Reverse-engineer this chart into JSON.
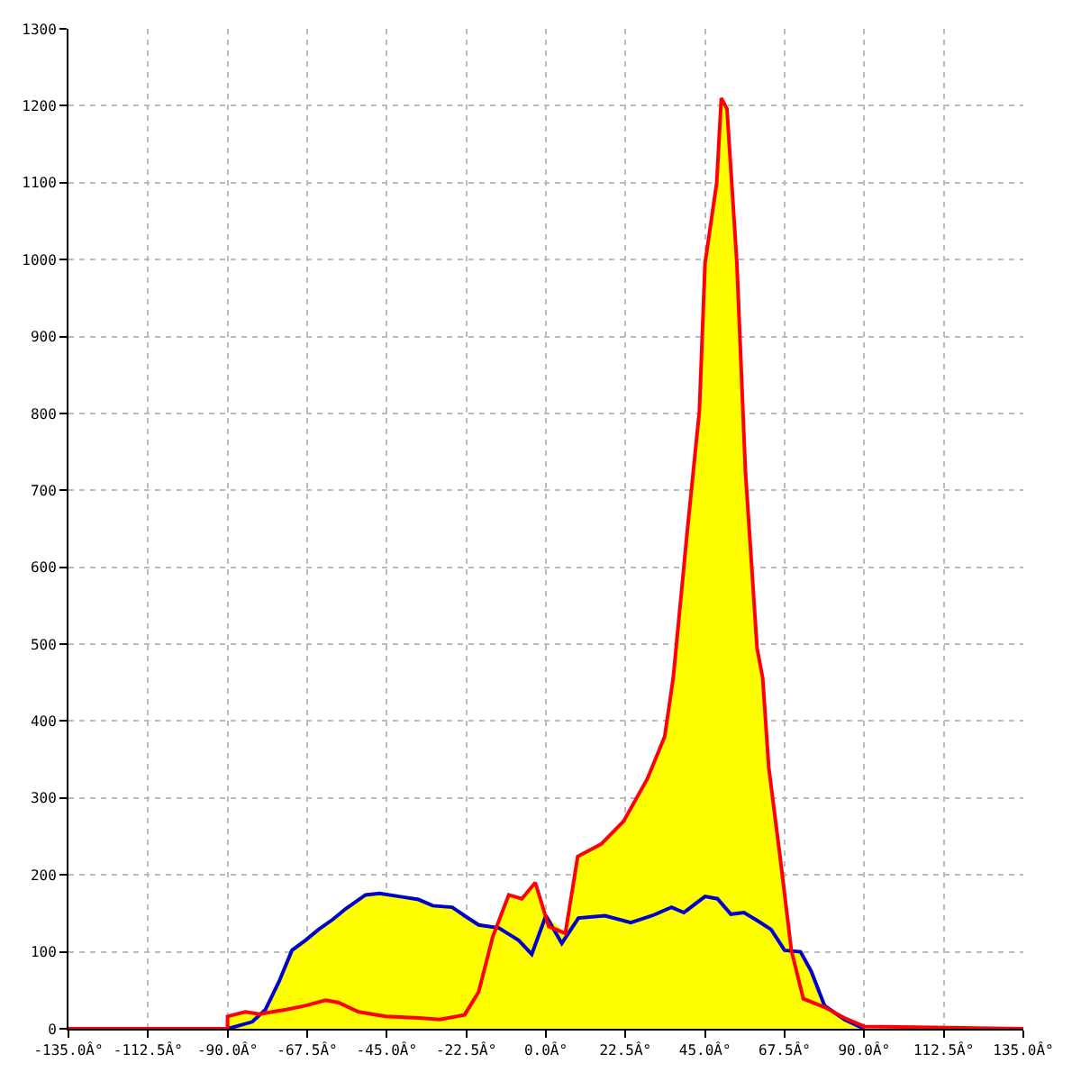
{
  "chart_data": {
    "type": "area",
    "xlim": [
      -135,
      135
    ],
    "xticks": [
      {
        "value": -135,
        "label": "-135.0Â°"
      },
      {
        "value": -112.5,
        "label": "-112.5Â°"
      },
      {
        "value": -90,
        "label": "-90.0Â°"
      },
      {
        "value": -67.5,
        "label": "-67.5Â°"
      },
      {
        "value": -45,
        "label": "-45.0Â°"
      },
      {
        "value": -22.5,
        "label": "-22.5Â°"
      },
      {
        "value": 0,
        "label": "0.0Â°"
      },
      {
        "value": 22.5,
        "label": "22.5Â°"
      },
      {
        "value": 45,
        "label": "45.0Â°"
      },
      {
        "value": 67.5,
        "label": "67.5Â°"
      },
      {
        "value": 90,
        "label": "90.0Â°"
      },
      {
        "value": 112.5,
        "label": "112.5Â°"
      },
      {
        "value": 135,
        "label": "135.0Â°"
      }
    ],
    "ylim": [
      0,
      1300
    ],
    "yticks": [
      0,
      100,
      200,
      300,
      400,
      500,
      600,
      700,
      800,
      900,
      1000,
      1100,
      1200,
      1300
    ],
    "grid": true,
    "series": [
      {
        "color": "#ffff00",
        "x": [
          -90,
          -85,
          -81,
          -79.3,
          -75.5,
          -71.8,
          -68,
          -64.3,
          -60.3,
          -56.6,
          -51,
          -47,
          -41.5,
          -36,
          -32,
          -26.5,
          -23,
          -19,
          -13.3,
          -10.5,
          -6.8,
          -3,
          0,
          5.5,
          9,
          15.6,
          22,
          28.7,
          33.6,
          36,
          40,
          43.4,
          45,
          48.3,
          49.6,
          51.2,
          54,
          56.4,
          59.7,
          61.3,
          63,
          66.2,
          69.4,
          72,
          75,
          78.8,
          84.4,
          90
        ],
        "values": [
          16,
          22,
          19,
          25,
          61,
          102,
          115,
          129,
          142,
          156,
          174,
          176,
          172,
          168,
          160,
          158,
          147,
          135,
          131,
          174,
          169,
          190,
          147,
          124,
          224,
          240,
          270,
          325,
          380,
          456,
          648,
          803,
          995,
          1100,
          1210,
          1196,
          995,
          726,
          495,
          456,
          340,
          224,
          102,
          100,
          75,
          30,
          14,
          3
        ]
      },
      {
        "type": "line",
        "color": "#0000cc",
        "x": [
          -90,
          -83,
          -79.3,
          -75.5,
          -71.8,
          -68,
          -64.3,
          -60.3,
          -56.6,
          -51,
          -47,
          -41.5,
          -36,
          -32,
          -26.5,
          -23,
          -19,
          -13.3,
          -7.7,
          -4,
          0,
          4.5,
          9.2,
          16.7,
          24,
          30,
          35.5,
          39,
          45,
          48.5,
          52.3,
          56,
          60,
          63.7,
          67.5,
          72,
          75,
          78.8,
          84.4,
          90
        ],
        "values": [
          0,
          9,
          25,
          61,
          102,
          115,
          129,
          142,
          156,
          174,
          176,
          172,
          168,
          160,
          158,
          147,
          135,
          131,
          115,
          97,
          147,
          111,
          144,
          147,
          138,
          147,
          158,
          151,
          172,
          169,
          149,
          151,
          140,
          129,
          102,
          100,
          75,
          30,
          12,
          0
        ]
      },
      {
        "type": "line",
        "color": "#ff0000",
        "x": [
          -135,
          -90,
          -90,
          -85,
          -81,
          -73.5,
          -68,
          -62.3,
          -58.6,
          -53,
          -45.3,
          -36,
          -30,
          -23,
          -19,
          -15,
          -10.5,
          -6.8,
          -3,
          0.8,
          5.5,
          9,
          15.6,
          22,
          28.7,
          33.6,
          36,
          40,
          43.4,
          45,
          48.3,
          49.6,
          51.2,
          54,
          56.4,
          59.7,
          61.3,
          63,
          66.2,
          69.4,
          72.8,
          78.8,
          84.4,
          90,
          135
        ],
        "values": [
          0,
          0,
          16,
          22,
          19,
          25,
          30,
          37,
          34,
          22,
          16,
          14,
          12,
          18,
          48,
          120,
          174,
          169,
          190,
          133,
          124,
          224,
          240,
          270,
          325,
          380,
          456,
          648,
          803,
          995,
          1100,
          1210,
          1196,
          995,
          726,
          495,
          456,
          340,
          224,
          102,
          39,
          28,
          14,
          3,
          0
        ]
      }
    ]
  }
}
